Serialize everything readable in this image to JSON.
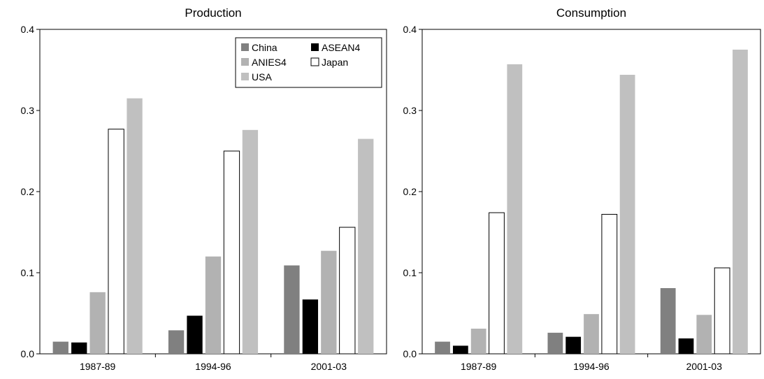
{
  "series_colors": {
    "China": "#808080",
    "ASEAN4": "#000000",
    "ANIES4": "#b2b2b2",
    "Japan": "#ffffff",
    "USA": "#c0c0c0"
  },
  "chart_data": [
    {
      "type": "bar",
      "title": "Production",
      "xlabel": "",
      "ylabel": "",
      "ylim": [
        0,
        0.4
      ],
      "yticks": [
        "0.0",
        "0.1",
        "0.2",
        "0.3",
        "0.4"
      ],
      "categories": [
        "1987-89",
        "1994-96",
        "2001-03"
      ],
      "legend": {
        "placement": "top-right",
        "entries": [
          "China",
          "ASEAN4",
          "ANIES4",
          "Japan",
          "USA"
        ]
      },
      "grid": false,
      "series": [
        {
          "name": "China",
          "values": [
            0.015,
            0.029,
            0.109
          ]
        },
        {
          "name": "ASEAN4",
          "values": [
            0.014,
            0.047,
            0.067
          ]
        },
        {
          "name": "ANIES4",
          "values": [
            0.076,
            0.12,
            0.127
          ]
        },
        {
          "name": "Japan",
          "values": [
            0.277,
            0.25,
            0.156
          ]
        },
        {
          "name": "USA",
          "values": [
            0.315,
            0.276,
            0.265
          ]
        }
      ]
    },
    {
      "type": "bar",
      "title": "Consumption",
      "xlabel": "",
      "ylabel": "",
      "ylim": [
        0,
        0.4
      ],
      "yticks": [
        "0.0",
        "0.1",
        "0.2",
        "0.3",
        "0.4"
      ],
      "categories": [
        "1987-89",
        "1994-96",
        "2001-03"
      ],
      "grid": false,
      "series": [
        {
          "name": "China",
          "values": [
            0.015,
            0.026,
            0.081
          ]
        },
        {
          "name": "ASEAN4",
          "values": [
            0.01,
            0.021,
            0.019
          ]
        },
        {
          "name": "ANIES4",
          "values": [
            0.031,
            0.049,
            0.048
          ]
        },
        {
          "name": "Japan",
          "values": [
            0.174,
            0.172,
            0.106
          ]
        },
        {
          "name": "USA",
          "values": [
            0.357,
            0.344,
            0.375
          ]
        }
      ]
    }
  ]
}
